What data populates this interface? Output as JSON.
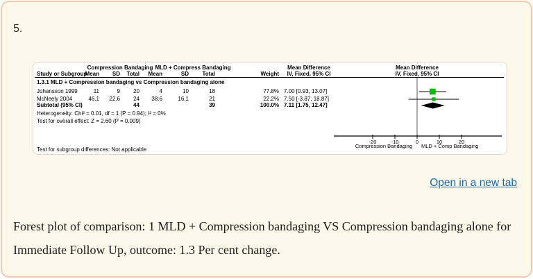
{
  "page": {
    "figure_number": "5.",
    "open_link_label": "Open in a new tab",
    "caption": "Forest plot of comparison: 1 MLD + Compression bandaging VS Compression bandaging alone for Immediate Follow Up, outcome: 1.3 Per cent change."
  },
  "colors": {
    "card_bg": "#fdf8e9",
    "card_border": "#f3c8ae",
    "link_blue": "#1668a8",
    "marker_green": "#00bf00",
    "diamond_black": "#000000"
  },
  "forest_table": {
    "group_headers": {
      "experimental": "Compression Bandaging",
      "control": "MLD + Compress Bandaging",
      "md_text_col": "Mean Difference",
      "md_graph_col": "Mean Difference"
    },
    "col_headers": {
      "study": "Study or Subgroup",
      "mean1": "Mean",
      "sd1": "SD",
      "total1": "Total",
      "mean2": "Mean",
      "sd2": "SD",
      "total2": "Total",
      "weight": "Weight",
      "ci_text_col": "IV, Fixed, 95% CI",
      "ci_graph_col": "IV, Fixed, 95% CI"
    },
    "subgroup_title": "1.3.1 MLD + Compression bandaging vs Compression bandaging alone",
    "rows": [
      {
        "study": "Johansson 1999",
        "mean1": "11",
        "sd1": "9",
        "total1": "20",
        "mean2": "4",
        "sd2": "10",
        "total2": "18",
        "weight": "77.8%",
        "ci": "7.00 [0.93, 13.07]"
      },
      {
        "study": "McNeely 2004",
        "mean1": "46.1",
        "sd1": "22.6",
        "total1": "24",
        "mean2": "38.6",
        "sd2": "16.1",
        "total2": "21",
        "weight": "22.2%",
        "ci": "7.50 [-3.87, 18.87]"
      }
    ],
    "subtotal": {
      "study": "Subtotal (95% CI)",
      "total1": "44",
      "total2": "39",
      "weight": "100.0%",
      "ci": "7.11 [1.75, 12.47]"
    },
    "heterogeneity": "Heterogeneity: Chi² = 0.01, df = 1 (P = 0.94); I² = 0%",
    "overall_effect": "Test for overall effect: Z = 2.60 (P = 0.009)",
    "subgroup_diff": "Test for subgroup differences: Not applicable"
  },
  "chart_data": {
    "type": "forest",
    "title": "",
    "x_axis": {
      "ticks": [
        -20,
        -10,
        0,
        10,
        20
      ],
      "range": [
        -37.5,
        38
      ],
      "label_left": "Compression Bandaging",
      "label_right": "MLD + Comp Bandaging"
    },
    "effect_measure": "Mean Difference, IV, Fixed, 95% CI",
    "studies": [
      {
        "name": "Johansson 1999",
        "md": 7.0,
        "ci_low": 0.93,
        "ci_high": 13.07,
        "weight_pct": 77.8
      },
      {
        "name": "McNeely 2004",
        "md": 7.5,
        "ci_low": -3.87,
        "ci_high": 18.87,
        "weight_pct": 22.2
      }
    ],
    "subtotal": {
      "name": "Subtotal (95% CI)",
      "md": 7.11,
      "ci_low": 1.75,
      "ci_high": 12.47,
      "weight_pct": 100.0
    },
    "heterogeneity": {
      "chi2": 0.01,
      "df": 1,
      "p": 0.94,
      "i2_pct": 0
    },
    "overall_effect": {
      "z": 2.6,
      "p": 0.009
    }
  }
}
